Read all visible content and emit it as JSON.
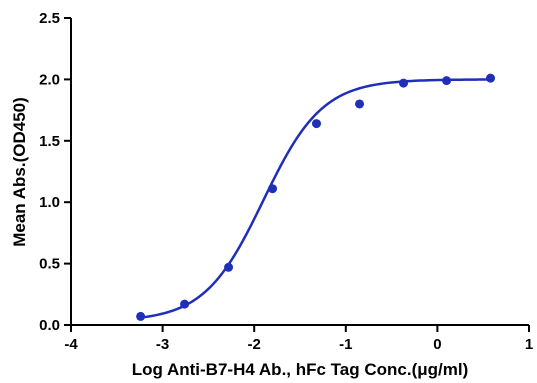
{
  "chart_data": {
    "type": "scatter",
    "title": "",
    "xlabel": "Log Anti-B7-H4 Ab., hFc Tag Conc.(μg/ml)",
    "ylabel": "Mean Abs.(OD450)",
    "xlim": [
      -4,
      1
    ],
    "ylim": [
      0,
      2.5
    ],
    "x_ticks": [
      "-4",
      "-3",
      "-2",
      "-1",
      "0",
      "1"
    ],
    "y_ticks": [
      "0.0",
      "0.5",
      "1.0",
      "1.5",
      "2.0",
      "2.5"
    ],
    "grid": false,
    "legend": "none",
    "series": [
      {
        "marker": "circle",
        "color": "#1f2fb8",
        "x": [
          -3.24,
          -2.76,
          -2.28,
          -1.8,
          -1.32,
          -0.85,
          -0.37,
          0.1,
          0.58
        ],
        "y": [
          0.07,
          0.17,
          0.47,
          1.11,
          1.64,
          1.8,
          1.97,
          1.99,
          2.01
        ]
      }
    ],
    "fit_curve": {
      "type": "four-parameter logistic",
      "color": "#1f2fb8",
      "bottom": 0.03,
      "top": 2.0,
      "log_ec50": -1.9,
      "hill_slope": 1.35,
      "x_range": [
        -3.24,
        0.58
      ]
    }
  }
}
